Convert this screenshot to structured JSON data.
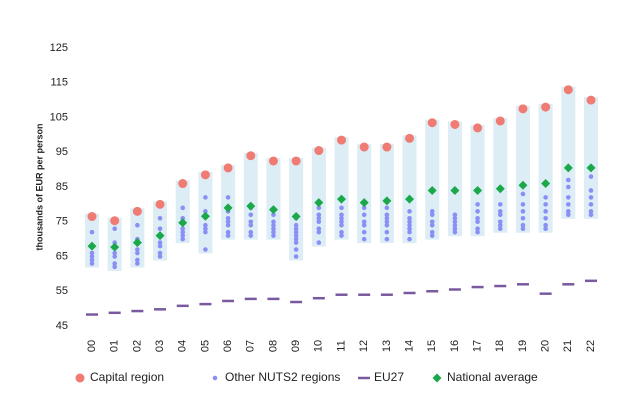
{
  "chart_data": {
    "type": "dot-range",
    "y_label": "thousands of EUR per person",
    "categories": [
      "00",
      "01",
      "02",
      "03",
      "04",
      "05",
      "06",
      "07",
      "08",
      "09",
      "10",
      "11",
      "12",
      "13",
      "14",
      "15",
      "16",
      "17",
      "18",
      "19",
      "20",
      "21",
      "22"
    ],
    "ylim": [
      45,
      125
    ],
    "yticks": [
      45,
      55,
      65,
      75,
      85,
      95,
      105,
      115,
      125
    ],
    "range_color": "#dcedf5",
    "series": [
      {
        "name": "Capital region",
        "color": "#f07b73",
        "marker": "circle",
        "values": [
          76.5,
          75.3,
          78,
          80,
          86,
          88.5,
          90.5,
          94,
          92.5,
          92.5,
          95.5,
          98.5,
          96.5,
          96.5,
          99,
          103.5,
          103,
          102,
          104,
          107.5,
          108,
          113,
          110
        ]
      },
      {
        "name": "Other NUTS2 regions",
        "color": "#8b8ff5",
        "marker": "dot",
        "values": [
          [
            72,
            66,
            65,
            64,
            63
          ],
          [
            73,
            69,
            66,
            65,
            63,
            62
          ],
          [
            74,
            70,
            67,
            66,
            64,
            63
          ],
          [
            76,
            73,
            69,
            68,
            66,
            65
          ],
          [
            79,
            76,
            73,
            72,
            71,
            70
          ],
          [
            82,
            78,
            74,
            73,
            72,
            67
          ],
          [
            82,
            78,
            76,
            75,
            74,
            72,
            71
          ],
          [
            79,
            77,
            75,
            74,
            72,
            71
          ],
          [
            77,
            75,
            74,
            73,
            72,
            71
          ],
          [
            76,
            74,
            73,
            72,
            71,
            70,
            69,
            67,
            65
          ],
          [
            79,
            77,
            76,
            75,
            73,
            72,
            69
          ],
          [
            79,
            77,
            76,
            75,
            74,
            72,
            71
          ],
          [
            79,
            77,
            75,
            74,
            72,
            70
          ],
          [
            79,
            77,
            76,
            75,
            74,
            72,
            70
          ],
          [
            78,
            76,
            75,
            74,
            73,
            72,
            70
          ],
          [
            78,
            77,
            75,
            74,
            72,
            71
          ],
          [
            77,
            76,
            75,
            74,
            73,
            72
          ],
          [
            80,
            78,
            76,
            75,
            73,
            72
          ],
          [
            80,
            78,
            77,
            75,
            74,
            73
          ],
          [
            83,
            80,
            78,
            76,
            74,
            73
          ],
          [
            82,
            80,
            78,
            76,
            74,
            73
          ],
          [
            87,
            85,
            82,
            80,
            78,
            77
          ],
          [
            88,
            84,
            82,
            80,
            78,
            77
          ]
        ]
      },
      {
        "name": "EU27",
        "color": "#7a5a9e",
        "marker": "dash",
        "values": [
          48.3,
          48.8,
          49.3,
          49.8,
          50.8,
          51.3,
          52.2,
          52.8,
          52.8,
          51.9,
          53,
          54,
          54,
          54,
          54.5,
          55,
          55.5,
          56.2,
          56.5,
          57,
          54.3,
          57,
          58
        ]
      },
      {
        "name": "National average",
        "color": "#1aa84a",
        "marker": "diamond",
        "values": [
          68,
          67.7,
          69,
          71,
          74.7,
          76.6,
          79,
          79.5,
          78.5,
          76.5,
          80.5,
          81.5,
          80.5,
          81,
          81.5,
          84,
          84,
          84,
          84.5,
          85.5,
          86,
          90.5,
          90.5
        ]
      }
    ]
  }
}
